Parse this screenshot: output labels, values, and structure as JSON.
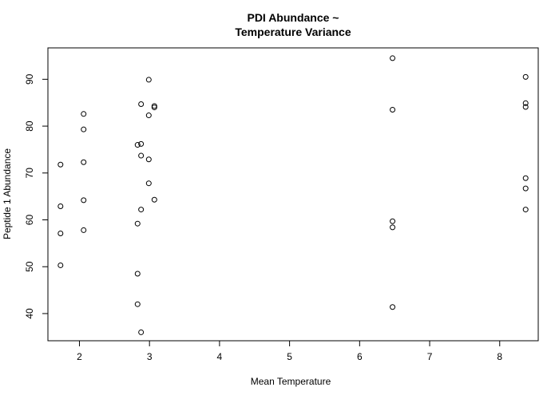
{
  "chart_data": {
    "type": "scatter",
    "title_lines": [
      "PDI Abundance ~",
      "Temperature Variance"
    ],
    "xlabel": "Mean Temperature",
    "ylabel": "Peptide 1 Abundance",
    "xlim": [
      1.55,
      8.55
    ],
    "ylim": [
      34.2,
      96.7
    ],
    "xticks": [
      2,
      3,
      4,
      5,
      6,
      7,
      8
    ],
    "yticks": [
      40,
      50,
      60,
      70,
      80,
      90
    ],
    "grid": false,
    "legend": "none",
    "points": [
      {
        "x": 1.73,
        "y": 71.8
      },
      {
        "x": 1.73,
        "y": 62.9
      },
      {
        "x": 1.73,
        "y": 57.1
      },
      {
        "x": 1.73,
        "y": 50.3
      },
      {
        "x": 2.06,
        "y": 82.6
      },
      {
        "x": 2.06,
        "y": 79.3
      },
      {
        "x": 2.06,
        "y": 72.3
      },
      {
        "x": 2.06,
        "y": 64.2
      },
      {
        "x": 2.06,
        "y": 57.8
      },
      {
        "x": 2.83,
        "y": 76.0
      },
      {
        "x": 2.83,
        "y": 59.2
      },
      {
        "x": 2.83,
        "y": 48.5
      },
      {
        "x": 2.83,
        "y": 42.0
      },
      {
        "x": 2.88,
        "y": 84.7
      },
      {
        "x": 2.88,
        "y": 76.2
      },
      {
        "x": 2.88,
        "y": 73.7
      },
      {
        "x": 2.88,
        "y": 62.2
      },
      {
        "x": 2.88,
        "y": 36.0
      },
      {
        "x": 2.99,
        "y": 89.9
      },
      {
        "x": 2.99,
        "y": 82.3
      },
      {
        "x": 2.99,
        "y": 72.9
      },
      {
        "x": 2.99,
        "y": 67.8
      },
      {
        "x": 3.07,
        "y": 84.3
      },
      {
        "x": 3.07,
        "y": 84.0
      },
      {
        "x": 3.07,
        "y": 64.3
      },
      {
        "x": 6.47,
        "y": 94.5
      },
      {
        "x": 6.47,
        "y": 83.5
      },
      {
        "x": 6.47,
        "y": 59.7
      },
      {
        "x": 6.47,
        "y": 58.4
      },
      {
        "x": 6.47,
        "y": 41.4
      },
      {
        "x": 8.37,
        "y": 90.5
      },
      {
        "x": 8.37,
        "y": 84.9
      },
      {
        "x": 8.37,
        "y": 84.1
      },
      {
        "x": 8.37,
        "y": 68.9
      },
      {
        "x": 8.37,
        "y": 66.7
      },
      {
        "x": 8.37,
        "y": 62.2
      }
    ]
  }
}
